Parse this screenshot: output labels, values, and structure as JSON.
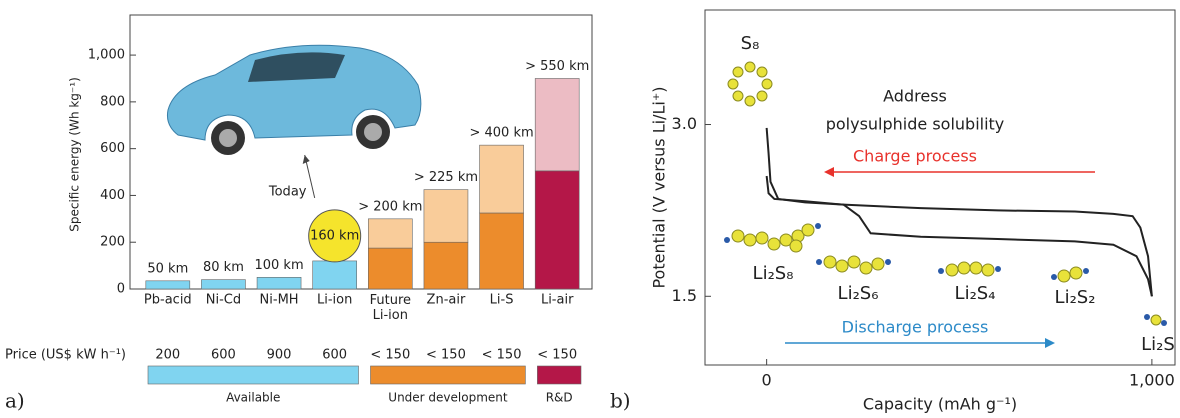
{
  "chart_data": [
    {
      "type": "bar",
      "panel_label": "a)",
      "y_label": "Specific energy (Wh kg⁻¹)",
      "categories": [
        "Pb-acid",
        "Ni-Cd",
        "Ni-MH",
        "Li-ion",
        "Future\nLi-ion",
        "Zn-air",
        "Li-S",
        "Li-air"
      ],
      "series": [
        {
          "colors": [
            "#80d4f0",
            "#80d4f0",
            "#80d4f0",
            "#80d4f0",
            "#ec8c2c",
            "#ec8c2c",
            "#ec8c2c",
            "#b41748"
          ],
          "values": [
            35,
            40,
            50,
            120,
            175,
            200,
            325,
            505
          ]
        },
        {
          "colors": [
            "#f9cc9a",
            "#f9cc9a",
            "#f9cc9a",
            "#f9cc9a",
            "#f9cc9a",
            "#f9cc9a",
            "#f9cc9a",
            "#ecbcc4"
          ],
          "values": [
            null,
            null,
            null,
            null,
            125,
            225,
            290,
            395
          ]
        }
      ],
      "distance_labels": [
        "50 km",
        "80 km",
        "100 km",
        "160 km",
        "> 200 km",
        "> 225 km",
        "> 400 km",
        "> 550 km"
      ],
      "annotation": {
        "text": "Today",
        "category": 3,
        "color": "#f5e42c"
      },
      "ylim": [
        0,
        1150
      ],
      "yticks": [
        0,
        200,
        400,
        600,
        800,
        {
          "value": 1000,
          "label": "1,000"
        }
      ],
      "price_label": "Price (US$ kW h⁻¹)",
      "prices": [
        "200",
        "600",
        "900",
        "600",
        "< 150",
        "< 150",
        "< 150",
        "< 150"
      ],
      "availability": [
        {
          "label": "Available",
          "color": "#80d4f0",
          "count": 4
        },
        {
          "label": "Under development",
          "color": "#ec8c2c",
          "count": 3
        },
        {
          "label": "R&D",
          "color": "#b41748",
          "count": 1
        }
      ]
    },
    {
      "type": "line",
      "panel_label": "b)",
      "x_label": "Capacity (mAh g⁻¹)",
      "y_label": "Potential (V versus Li/Li⁺)",
      "xlim": [
        -160,
        1060
      ],
      "xticks": [
        0,
        {
          "value": 1000,
          "label": "1,000"
        }
      ],
      "ylim": [
        0.9,
        4.0
      ],
      "yticks": [
        {
          "value": 1.5,
          "label": "1.5"
        },
        {
          "value": 3,
          "label": "3.0"
        }
      ],
      "series": [
        {
          "color": "#222222",
          "x": [
            0,
            5,
            20,
            100,
            200,
            240,
            270,
            400,
            600,
            800,
            900,
            960,
            990,
            1000
          ],
          "y": [
            2.55,
            2.4,
            2.35,
            2.33,
            2.3,
            2.2,
            2.05,
            2.02,
            2.0,
            1.98,
            1.95,
            1.85,
            1.65,
            1.5
          ]
        },
        {
          "color": "#222222",
          "x": [
            1000,
            990,
            970,
            950,
            900,
            800,
            600,
            400,
            200,
            100,
            30,
            10,
            5,
            0
          ],
          "y": [
            1.5,
            1.85,
            2.1,
            2.2,
            2.22,
            2.24,
            2.25,
            2.27,
            2.3,
            2.32,
            2.35,
            2.5,
            2.75,
            2.97
          ]
        }
      ],
      "annotations": [
        {
          "text": "Address",
          "color": "#222222"
        },
        {
          "text": "polysulphide solubility",
          "color": "#222222"
        },
        {
          "text": "Charge process",
          "color": "#e8322c"
        },
        {
          "text": "Discharge process",
          "color": "#2c8ac8"
        }
      ],
      "species": [
        "S₈",
        "Li₂S₈",
        "Li₂S₆",
        "Li₂S₄",
        "Li₂S₂",
        "Li₂S"
      ]
    }
  ]
}
